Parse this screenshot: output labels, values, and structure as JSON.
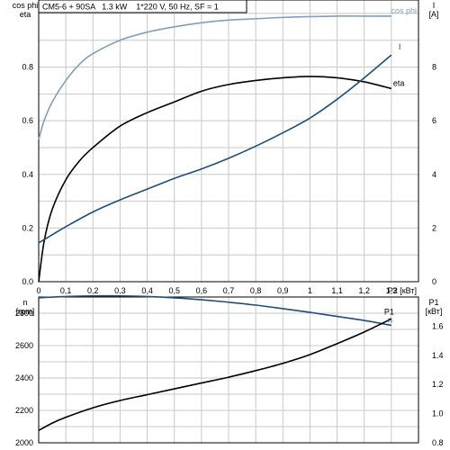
{
  "header": {
    "text": "CM5-6 + 90SA   1.3 kW    1*220 V, 50 Hz, SF = 1"
  },
  "colors": {
    "cos_phi": "#7f9fbf",
    "current": "#1f4e79",
    "eta": "#000000",
    "speed": "#1f4e79",
    "p1": "#000000",
    "grid": "#c8c8c8"
  },
  "chart_data": [
    {
      "type": "line",
      "title": "",
      "xlabel": "P2 [кВт]",
      "xlim": [
        0,
        1.4
      ],
      "xticks": [
        0,
        0.1,
        0.2,
        0.3,
        0.4,
        0.5,
        0.6,
        0.7,
        0.8,
        0.9,
        1.0,
        1.1,
        1.2,
        1.3
      ],
      "xtick_labels": [
        "0",
        "0,1",
        "0,2",
        "0,3",
        "0,4",
        "0,5",
        "0,6",
        "0,7",
        "0,8",
        "0,9",
        "1",
        "1,1",
        "1,2",
        "1,3"
      ],
      "ylabel_left": [
        "cos phi",
        "eta"
      ],
      "ylim_left": [
        0,
        1.05
      ],
      "yticks_left": [
        0,
        0.2,
        0.4,
        0.6,
        0.8
      ],
      "ytick_labels_left": [
        "0.0",
        "0.2",
        "0.4",
        "0.6",
        "0.8"
      ],
      "ylabel_right": [
        "I",
        "[A]"
      ],
      "ylim_right": [
        0,
        10.5
      ],
      "yticks_right": [
        0,
        2,
        4,
        6,
        8
      ],
      "ytick_labels_right": [
        "0",
        "2",
        "4",
        "6",
        "8"
      ],
      "grid": true,
      "series": [
        {
          "name": "cos phi",
          "axis": "left",
          "color_key": "cos_phi",
          "x": [
            0,
            0.02,
            0.05,
            0.1,
            0.15,
            0.2,
            0.3,
            0.4,
            0.5,
            0.6,
            0.7,
            0.8,
            0.9,
            1.0,
            1.1,
            1.2,
            1.3
          ],
          "y": [
            0.53,
            0.6,
            0.67,
            0.75,
            0.81,
            0.85,
            0.9,
            0.93,
            0.95,
            0.965,
            0.975,
            0.98,
            0.985,
            0.988,
            0.99,
            0.99,
            0.99
          ]
        },
        {
          "name": "eta",
          "axis": "left",
          "color_key": "eta",
          "x": [
            0,
            0.02,
            0.05,
            0.1,
            0.15,
            0.2,
            0.3,
            0.4,
            0.5,
            0.6,
            0.7,
            0.8,
            0.9,
            1.0,
            1.1,
            1.2,
            1.3
          ],
          "y": [
            0,
            0.15,
            0.27,
            0.38,
            0.45,
            0.5,
            0.58,
            0.63,
            0.67,
            0.71,
            0.735,
            0.75,
            0.76,
            0.765,
            0.76,
            0.745,
            0.72
          ]
        },
        {
          "name": "I",
          "axis": "right",
          "color_key": "current",
          "x": [
            0,
            0.05,
            0.1,
            0.2,
            0.3,
            0.4,
            0.5,
            0.6,
            0.7,
            0.8,
            0.9,
            1.0,
            1.1,
            1.2,
            1.3
          ],
          "y": [
            1.45,
            1.75,
            2.05,
            2.6,
            3.05,
            3.45,
            3.85,
            4.2,
            4.6,
            5.05,
            5.55,
            6.1,
            6.8,
            7.6,
            8.45
          ]
        }
      ]
    },
    {
      "type": "line",
      "title": "",
      "xlim": [
        0,
        1.4
      ],
      "ylabel_left": [
        "n",
        "[rpm]"
      ],
      "ylim_left": [
        2000,
        2900
      ],
      "yticks_left": [
        2000,
        2200,
        2400,
        2600,
        2800
      ],
      "ytick_labels_left": [
        "2000",
        "2200",
        "2400",
        "2600",
        "2800"
      ],
      "ylabel_right": [
        "P1",
        "[кВт]"
      ],
      "ylim_right": [
        0.8,
        1.8
      ],
      "yticks_right": [
        0.8,
        1.0,
        1.2,
        1.4,
        1.6
      ],
      "ytick_labels_right": [
        "0.8",
        "1.0",
        "1.2",
        "1.4",
        "1.6"
      ],
      "grid": true,
      "series": [
        {
          "name": "n",
          "axis": "left",
          "color_key": "speed",
          "x": [
            0,
            0.1,
            0.2,
            0.3,
            0.4,
            0.5,
            0.6,
            0.7,
            0.8,
            0.9,
            1.0,
            1.1,
            1.2,
            1.3
          ],
          "y": [
            2895,
            2903,
            2907,
            2907,
            2903,
            2895,
            2883,
            2868,
            2850,
            2828,
            2805,
            2780,
            2755,
            2725
          ]
        },
        {
          "name": "P1",
          "axis": "right",
          "color_key": "p1",
          "x": [
            0,
            0.05,
            0.1,
            0.2,
            0.3,
            0.4,
            0.5,
            0.6,
            0.7,
            0.8,
            0.9,
            1.0,
            1.1,
            1.2,
            1.3
          ],
          "y": [
            0.885,
            0.935,
            0.975,
            1.04,
            1.09,
            1.13,
            1.17,
            1.21,
            1.25,
            1.295,
            1.345,
            1.405,
            1.48,
            1.56,
            1.65
          ]
        }
      ]
    }
  ]
}
